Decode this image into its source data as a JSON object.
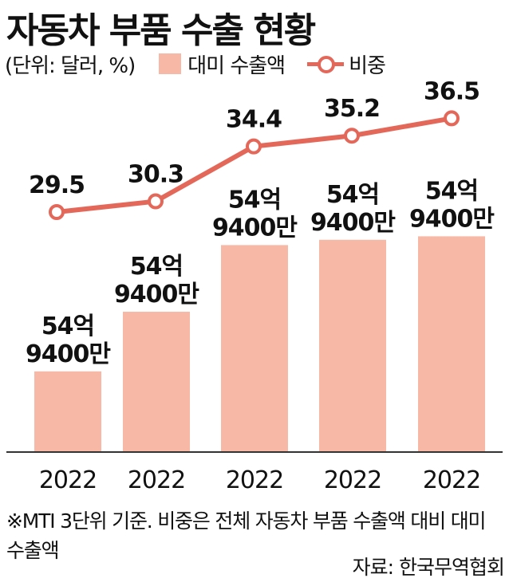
{
  "title": "자동차 부품 수출 현황",
  "legend": {
    "unit": "(단위: 달러, %)",
    "bar_label": "대미 수출액",
    "line_label": "비중"
  },
  "colors": {
    "bar": "#f7b8a6",
    "line": "#e4685a",
    "axis": "#333333"
  },
  "chart_data": {
    "type": "bar",
    "categories": [
      "2022",
      "2022",
      "2022",
      "2022",
      "2022"
    ],
    "series": [
      {
        "name": "대미 수출액",
        "type": "bar",
        "values": [
          2.3,
          4.0,
          5.9,
          6.05,
          6.15
        ],
        "labels": [
          [
            "54억",
            "9400만"
          ],
          [
            "54억",
            "9400만"
          ],
          [
            "54억",
            "9400만"
          ],
          [
            "54억",
            "9400만"
          ],
          [
            "54억",
            "9400만"
          ]
        ]
      },
      {
        "name": "비중",
        "type": "line",
        "values": [
          29.5,
          30.3,
          34.4,
          35.2,
          36.5
        ],
        "labels": [
          "29.5",
          "30.3",
          "34.4",
          "35.2",
          "36.5"
        ]
      }
    ]
  },
  "footnote": "※MTI 3단위 기준. 비중은 전체 자동차 부품 수출액 대비 대미 수출액",
  "source": "자료: 한국무역협회"
}
